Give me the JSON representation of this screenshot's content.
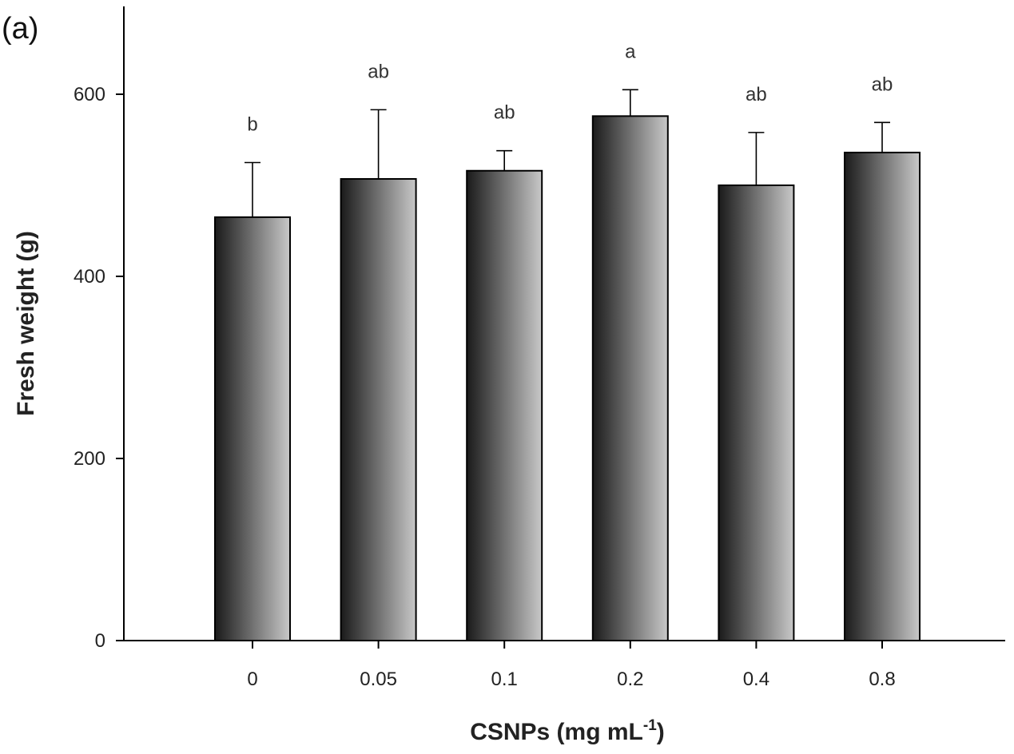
{
  "chart_data": {
    "type": "bar",
    "panel_label": "(a)",
    "xlabel_main": "CSNPs (mg mL",
    "xlabel_sup": "-1",
    "xlabel_end": ")",
    "ylabel": "Fresh weight (g)",
    "ylim": [
      0,
      700
    ],
    "yticks": [
      0,
      200,
      400,
      600
    ],
    "categories": [
      "0",
      "0.05",
      "0.1",
      "0.2",
      "0.4",
      "0.8"
    ],
    "values": [
      465,
      507,
      516,
      576,
      500,
      536
    ],
    "errors": [
      60,
      76,
      22,
      29,
      58,
      33
    ],
    "letters": [
      "b",
      "ab",
      "ab",
      "a",
      "ab",
      "ab"
    ],
    "colors": {
      "bar_dark": "#1a1a1a",
      "bar_light": "#c8c8c8",
      "axis": "#000000"
    }
  }
}
